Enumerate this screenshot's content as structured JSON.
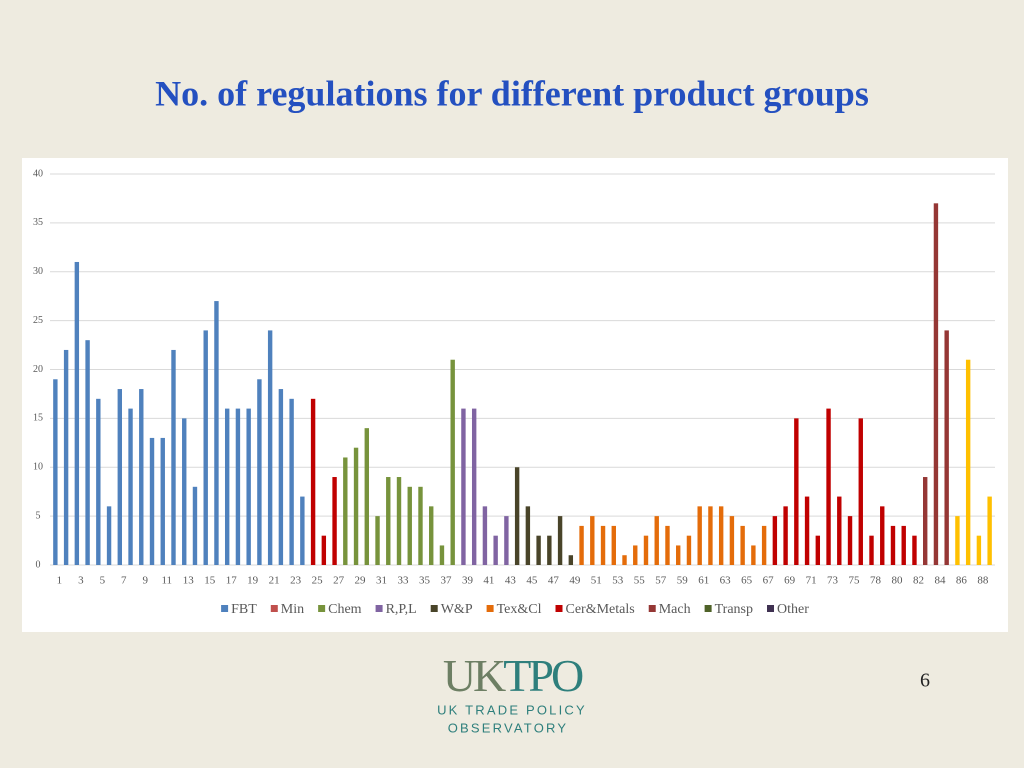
{
  "chart_data": {
    "type": "bar",
    "title": "No. of regulations for different product groups",
    "categories": [
      1,
      null,
      3,
      null,
      5,
      null,
      7,
      null,
      9,
      null,
      11,
      null,
      13,
      null,
      15,
      null,
      17,
      null,
      19,
      null,
      21,
      null,
      23,
      null,
      25,
      null,
      27,
      null,
      29,
      null,
      31,
      null,
      33,
      null,
      35,
      null,
      37,
      null,
      39,
      null,
      41,
      null,
      43,
      null,
      45,
      null,
      47,
      null,
      49,
      null,
      51,
      null,
      53,
      null,
      55,
      null,
      57,
      null,
      59,
      null,
      61,
      null,
      63,
      null,
      65,
      null,
      67,
      null,
      69,
      null,
      71,
      null,
      73,
      null,
      75,
      null,
      78,
      null,
      80,
      null,
      82,
      null,
      84,
      null,
      86,
      null,
      88,
      null
    ],
    "values": [
      19,
      22,
      31,
      23,
      17,
      6,
      18,
      16,
      18,
      13,
      13,
      22,
      15,
      8,
      24,
      27,
      16,
      16,
      16,
      19,
      24,
      18,
      17,
      7,
      17,
      3,
      9,
      11,
      12,
      14,
      5,
      9,
      9,
      8,
      8,
      6,
      2,
      21,
      16,
      16,
      6,
      3,
      5,
      10,
      6,
      3,
      3,
      5,
      1,
      4,
      5,
      4,
      4,
      1,
      2,
      3,
      5,
      4,
      2,
      3,
      6,
      6,
      6,
      5,
      4,
      2,
      4,
      5,
      6,
      15,
      7,
      3,
      16,
      7,
      5,
      15,
      3,
      6,
      4,
      4,
      3,
      9,
      37,
      24,
      5,
      21,
      3,
      7
    ],
    "bar_colors": [
      "#4f81bd",
      "#4f81bd",
      "#4f81bd",
      "#4f81bd",
      "#4f81bd",
      "#4f81bd",
      "#4f81bd",
      "#4f81bd",
      "#4f81bd",
      "#4f81bd",
      "#4f81bd",
      "#4f81bd",
      "#4f81bd",
      "#4f81bd",
      "#4f81bd",
      "#4f81bd",
      "#4f81bd",
      "#4f81bd",
      "#4f81bd",
      "#4f81bd",
      "#4f81bd",
      "#4f81bd",
      "#4f81bd",
      "#4f81bd",
      "#c00000",
      "#c00000",
      "#c00000",
      "#77933c",
      "#77933c",
      "#77933c",
      "#77933c",
      "#77933c",
      "#77933c",
      "#77933c",
      "#77933c",
      "#77933c",
      "#77933c",
      "#77933c",
      "#8064a2",
      "#8064a2",
      "#8064a2",
      "#8064a2",
      "#8064a2",
      "#494429",
      "#494429",
      "#494429",
      "#494429",
      "#494429",
      "#494429",
      "#e46c0a",
      "#e46c0a",
      "#e46c0a",
      "#e46c0a",
      "#e46c0a",
      "#e46c0a",
      "#e46c0a",
      "#e46c0a",
      "#e46c0a",
      "#e46c0a",
      "#e46c0a",
      "#e46c0a",
      "#e46c0a",
      "#e46c0a",
      "#e46c0a",
      "#e46c0a",
      "#e46c0a",
      "#e46c0a",
      "#c00000",
      "#c00000",
      "#c00000",
      "#c00000",
      "#c00000",
      "#c00000",
      "#c00000",
      "#c00000",
      "#c00000",
      "#c00000",
      "#c00000",
      "#c00000",
      "#c00000",
      "#c00000",
      "#953735",
      "#953735",
      "#953735",
      "#ffc000",
      "#ffc000",
      "#ffc000",
      "#ffc000"
    ],
    "legend": [
      {
        "name": "FBT",
        "color": "#4f81bd"
      },
      {
        "name": "Min",
        "color": "#c0504d"
      },
      {
        "name": "Chem",
        "color": "#77933c"
      },
      {
        "name": "R,P,L",
        "color": "#8064a2"
      },
      {
        "name": "W&P",
        "color": "#494429"
      },
      {
        "name": "Tex&Cl",
        "color": "#e46c0a"
      },
      {
        "name": "Cer&Metals",
        "color": "#c00000"
      },
      {
        "name": "Mach",
        "color": "#953735"
      },
      {
        "name": "Transp",
        "color": "#4f6228"
      },
      {
        "name": "Other",
        "color": "#3f3151"
      }
    ],
    "ylim": [
      0,
      40
    ],
    "yticks": [
      0,
      5,
      10,
      15,
      20,
      25,
      30,
      35,
      40
    ],
    "grid": true
  },
  "slide": {
    "page_number": "6",
    "logo": {
      "mark_left": "UK",
      "mark_right": "TPO",
      "line1": "UK TRADE POLICY",
      "line2": "OBSERVATORY"
    }
  }
}
